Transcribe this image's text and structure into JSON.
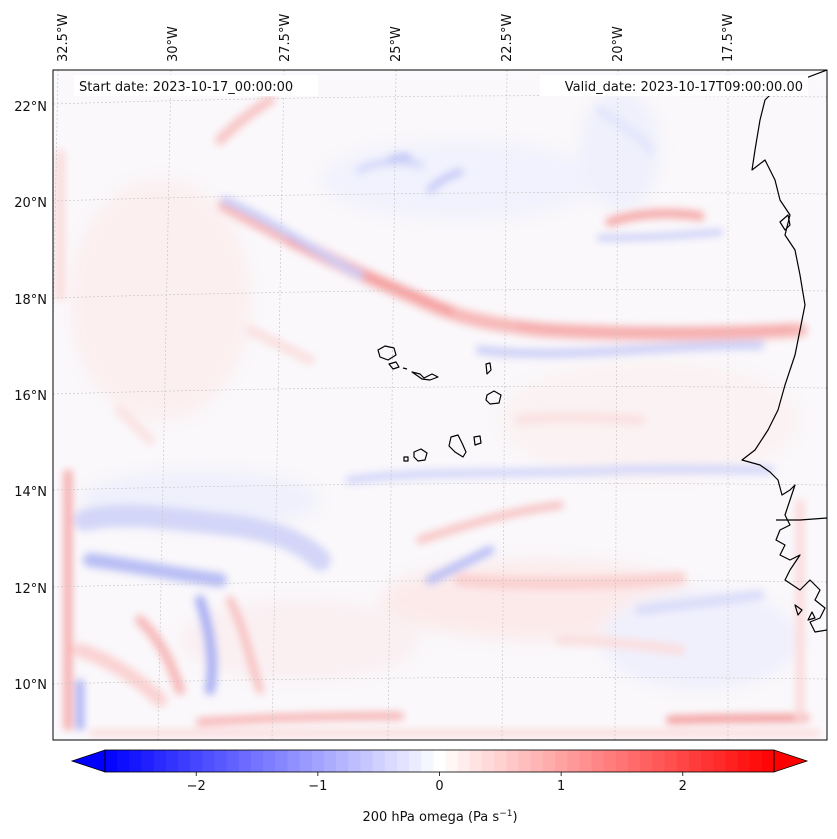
{
  "map": {
    "start_date": "Start date: 2023-10-17_00:00:00",
    "valid_date": "Valid_date: 2023-10-17T09:00:00.00",
    "lon_labels": [
      "32.5°W",
      "30°W",
      "27.5°W",
      "25°W",
      "22.5°W",
      "20°W",
      "17.5°W"
    ],
    "lat_labels": [
      "22°N",
      "20°N",
      "18°N",
      "16°N",
      "14°N",
      "12°N",
      "10°N"
    ],
    "variable": "200 hPa omega",
    "units": "Pa s",
    "units_exponent": "−1",
    "color_neg": "#0000ff",
    "color_pos": "#ff0000",
    "color_mid": "#ffffff"
  },
  "colorbar": {
    "min": -2.75,
    "max": 2.75,
    "ticks": [
      -2,
      -1,
      0,
      1,
      2
    ],
    "tick_labels": [
      "−2",
      "−1",
      "0",
      "1",
      "2"
    ]
  }
}
